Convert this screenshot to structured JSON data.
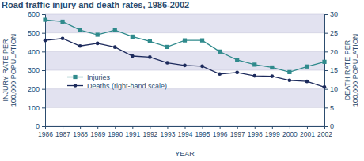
{
  "chart_data": {
    "type": "line",
    "title": "Road traffic injury and death rates, 1986-2002",
    "x_label": "YEAR",
    "y_label": "INJURY RATE PER 100,000 POPULATION",
    "y2_label": "DEATH RATE PER 100,000 POPULATION",
    "x": [
      1986,
      1987,
      1988,
      1989,
      1990,
      1991,
      1992,
      1993,
      1994,
      1995,
      1996,
      1997,
      1998,
      1999,
      2000,
      2001,
      2002
    ],
    "series": [
      {
        "name": "Injuries",
        "color": "#2f8a8c",
        "marker": "square",
        "values": [
          570,
          560,
          515,
          490,
          515,
          480,
          455,
          425,
          460,
          460,
          400,
          355,
          330,
          315,
          290,
          320,
          345
        ]
      },
      {
        "name": "Deaths (right-hand scale)",
        "color": "#1c2a5c",
        "marker": "circle",
        "axis": "y2",
        "values": [
          23,
          23.5,
          21.5,
          22.2,
          21.2,
          18.8,
          18.5,
          17,
          16.3,
          16.1,
          14,
          14.4,
          13.5,
          13.4,
          12.3,
          12,
          10.5
        ]
      }
    ],
    "xlim": [
      1986,
      2002
    ],
    "xticks": [
      1986,
      1987,
      1988,
      1989,
      1990,
      1991,
      1992,
      1993,
      1994,
      1995,
      1996,
      1997,
      1998,
      1999,
      2000,
      2001,
      2002
    ],
    "ylim": [
      0,
      600
    ],
    "yticks": [
      0,
      100,
      200,
      300,
      400,
      500,
      600
    ],
    "y2lim": [
      0,
      30
    ],
    "y2ticks": [
      0,
      5,
      10,
      15,
      20,
      25,
      30
    ],
    "grid": true,
    "legend": "lower left"
  }
}
